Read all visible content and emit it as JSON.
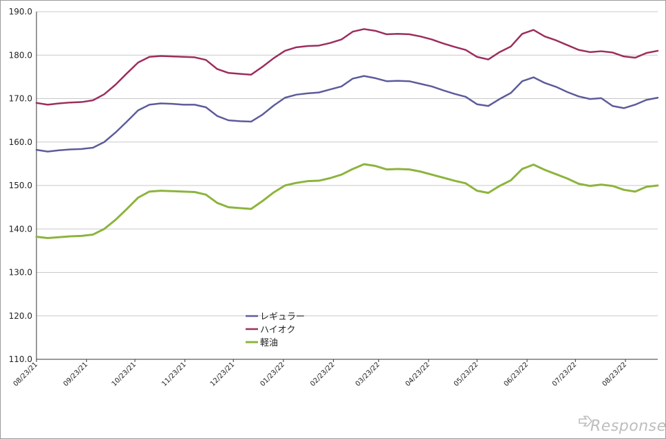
{
  "watermark": "Response.",
  "chart_data": {
    "type": "line",
    "title": "",
    "xlabel": "",
    "ylabel": "",
    "ylim": [
      110,
      190
    ],
    "yticks": [
      "110.0",
      "120.0",
      "130.0",
      "140.0",
      "150.0",
      "160.0",
      "170.0",
      "180.0",
      "190.0"
    ],
    "xtick_labels": [
      "08/23/21",
      "09/23/21",
      "10/23/21",
      "11/23/21",
      "12/23/21",
      "01/23/22",
      "02/23/22",
      "03/23/22",
      "04/23/22",
      "05/23/22",
      "06/23/22",
      "07/23/22",
      "08/23/22"
    ],
    "grid": "horizontal",
    "legend_position": "lower-center",
    "series": [
      {
        "name": "レギュラー",
        "color": "#5b5b9b",
        "values": [
          158.2,
          157.8,
          158.1,
          158.3,
          158.4,
          158.7,
          160.0,
          162.2,
          164.7,
          167.3,
          168.6,
          168.9,
          168.8,
          168.6,
          168.6,
          168.0,
          166.0,
          165.0,
          164.8,
          164.7,
          166.3,
          168.4,
          170.2,
          170.9,
          171.2,
          171.4,
          172.1,
          172.8,
          174.6,
          175.2,
          174.7,
          174.0,
          174.1,
          174.0,
          173.4,
          172.8,
          171.9,
          171.1,
          170.4,
          168.7,
          168.3,
          169.9,
          171.3,
          174.0,
          174.9,
          173.6,
          172.7,
          171.5,
          170.5,
          169.9,
          170.1,
          168.3,
          167.8,
          168.6,
          169.7,
          170.2
        ]
      },
      {
        "name": "ハイオク",
        "color": "#9b2d5d",
        "values": [
          169.0,
          168.6,
          168.9,
          169.1,
          169.2,
          169.6,
          171.0,
          173.2,
          175.8,
          178.3,
          179.6,
          179.8,
          179.7,
          179.6,
          179.5,
          178.9,
          176.8,
          175.9,
          175.7,
          175.5,
          177.3,
          179.3,
          181.0,
          181.8,
          182.1,
          182.2,
          182.8,
          183.6,
          185.4,
          186.0,
          185.6,
          184.8,
          184.9,
          184.8,
          184.3,
          183.6,
          182.7,
          181.9,
          181.2,
          179.6,
          179.0,
          180.7,
          182.0,
          184.9,
          185.8,
          184.3,
          183.4,
          182.3,
          181.2,
          180.7,
          180.9,
          180.6,
          179.7,
          179.4,
          180.5,
          181.0
        ]
      },
      {
        "name": "軽油",
        "color": "#8cb43c",
        "values": [
          138.2,
          137.9,
          138.1,
          138.3,
          138.4,
          138.7,
          140.0,
          142.1,
          144.6,
          147.2,
          148.6,
          148.8,
          148.7,
          148.6,
          148.5,
          147.9,
          146.0,
          145.0,
          144.8,
          144.6,
          146.4,
          148.4,
          150.0,
          150.6,
          151.0,
          151.1,
          151.7,
          152.5,
          153.8,
          154.9,
          154.5,
          153.7,
          153.8,
          153.7,
          153.2,
          152.5,
          151.8,
          151.1,
          150.5,
          148.8,
          148.3,
          149.9,
          151.2,
          153.8,
          154.8,
          153.6,
          152.6,
          151.6,
          150.4,
          149.9,
          150.2,
          149.9,
          149.0,
          148.6,
          149.7,
          150.0
        ]
      }
    ]
  }
}
